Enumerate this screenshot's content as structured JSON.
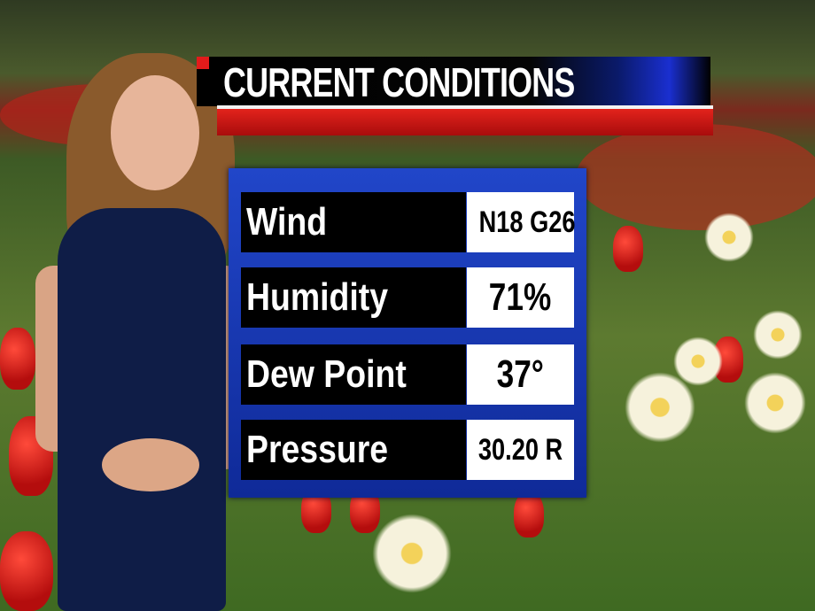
{
  "graphic": {
    "title": "CURRENT CONDITIONS",
    "rows": [
      {
        "label": "Wind",
        "value": "N18 G26"
      },
      {
        "label": "Humidity",
        "value": "71%"
      },
      {
        "label": "Dew Point",
        "value": "37°"
      },
      {
        "label": "Pressure",
        "value": "30.20 R"
      }
    ]
  },
  "colors": {
    "panel_blue": "#2146c9",
    "banner_red": "#d81e18",
    "banner_black": "#000000"
  }
}
